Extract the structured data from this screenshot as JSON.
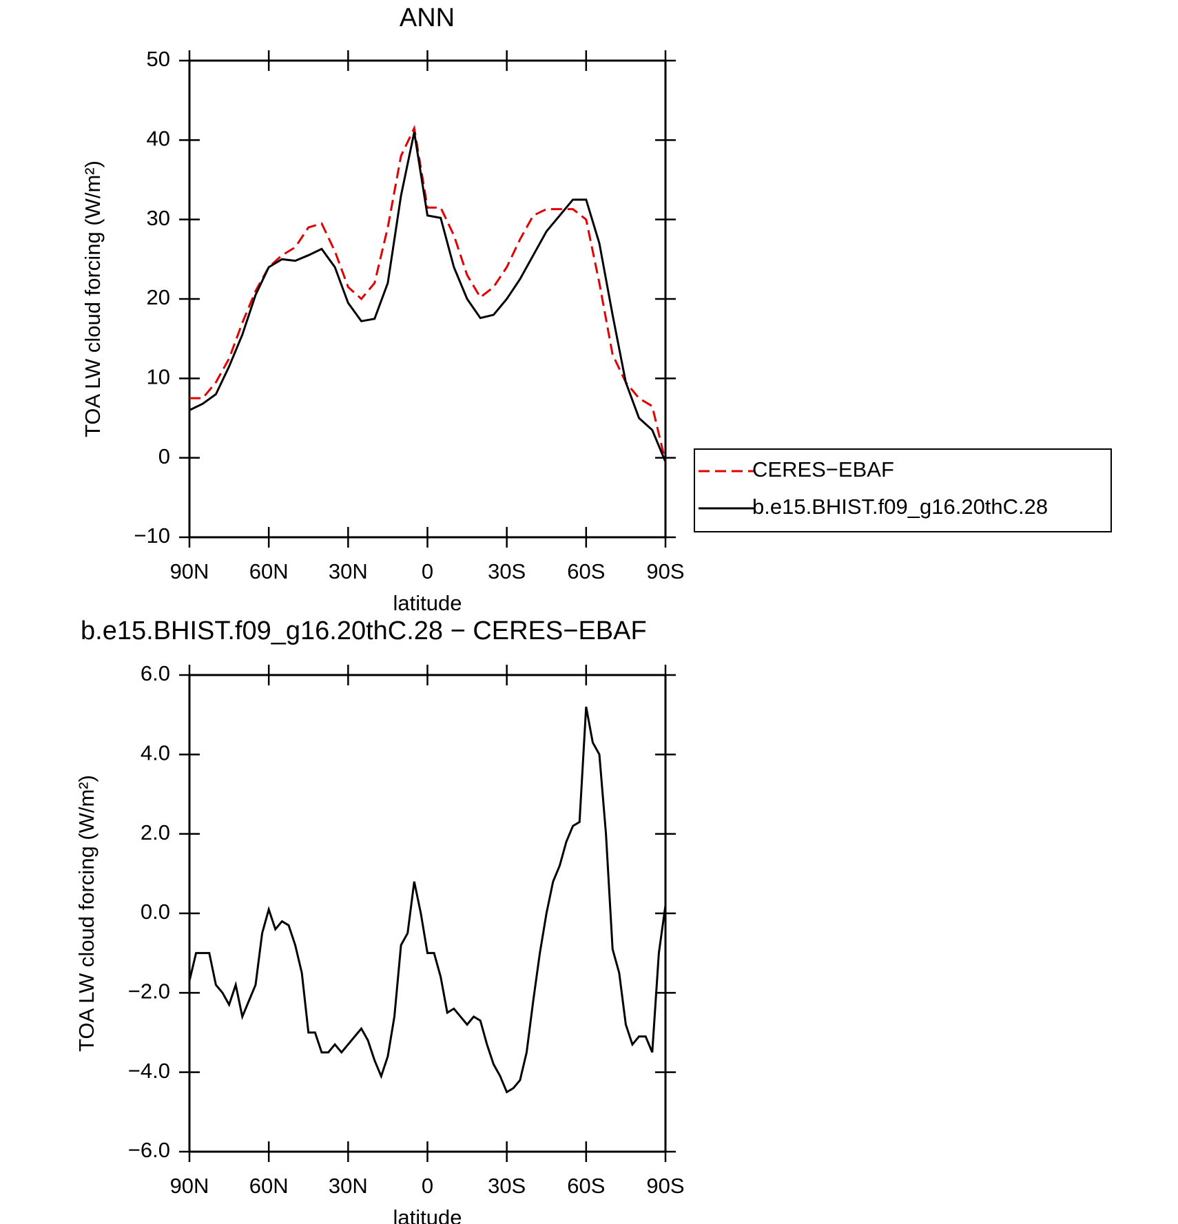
{
  "chart_data": [
    {
      "type": "line",
      "title": "ANN",
      "xlabel": "latitude",
      "ylabel": "TOA LW cloud forcing (W/m²)",
      "x": [
        90,
        85,
        80,
        75,
        70,
        65,
        60,
        55,
        50,
        45,
        40,
        35,
        30,
        25,
        20,
        15,
        10,
        5,
        0,
        -5,
        -10,
        -15,
        -20,
        -25,
        -30,
        -35,
        -40,
        -45,
        -50,
        -55,
        -60,
        -65,
        -70,
        -75,
        -80,
        -85,
        -90
      ],
      "series": [
        {
          "name": "CERES−EBAF",
          "color": "#e00000",
          "dash": true,
          "values": [
            7.5,
            7.5,
            9.5,
            12.5,
            17,
            21,
            24,
            25.5,
            26.5,
            29,
            29.5,
            26,
            21.5,
            20,
            22,
            29,
            38,
            41.5,
            31.5,
            31.5,
            28,
            23,
            20.2,
            21.5,
            24,
            27.5,
            30.5,
            31.3,
            31.3,
            31.3,
            30,
            22,
            13,
            9.5,
            7.5,
            6.5,
            -0.5
          ]
        },
        {
          "name": "b.e15.BHIST.f09_g16.20thC.28",
          "color": "#000000",
          "dash": false,
          "values": [
            6,
            6.8,
            8,
            11.5,
            15.5,
            20.5,
            24,
            25,
            24.8,
            25.5,
            26.3,
            24,
            19.5,
            17.2,
            17.5,
            22,
            33,
            41,
            30.5,
            30.2,
            24,
            20,
            17.6,
            18,
            20,
            22.5,
            25.5,
            28.5,
            30.5,
            32.5,
            32.5,
            27,
            18,
            9.5,
            5,
            3.5,
            -0.5
          ]
        }
      ],
      "xlim": [
        90,
        -90
      ],
      "xticks": [
        {
          "value": 90,
          "label": "90N"
        },
        {
          "value": 60,
          "label": "60N"
        },
        {
          "value": 30,
          "label": "30N"
        },
        0,
        {
          "value": -30,
          "label": "30S"
        },
        {
          "value": -60,
          "label": "60S"
        },
        {
          "value": -90,
          "label": "90S"
        }
      ],
      "ylim": [
        -10,
        50
      ],
      "yticks": [
        {
          "value": -10,
          "label": "−10"
        },
        0,
        10,
        20,
        30,
        40,
        50
      ],
      "legend": "right"
    },
    {
      "type": "line",
      "title": "b.e15.BHIST.f09_g16.20thC.28 − CERES−EBAF",
      "xlabel": "latitude",
      "ylabel": "TOA LW cloud forcing (W/m²)",
      "x": [
        90,
        87.5,
        85,
        82.5,
        80,
        77.5,
        75,
        72.5,
        70,
        67.5,
        65,
        62.5,
        60,
        57.5,
        55,
        52.5,
        50,
        47.5,
        45,
        42.5,
        40,
        37.5,
        35,
        32.5,
        30,
        27.5,
        25,
        22.5,
        20,
        17.5,
        15,
        12.5,
        10,
        7.5,
        5,
        2.5,
        0,
        -2.5,
        -5,
        -7.5,
        -10,
        -12.5,
        -15,
        -17.5,
        -20,
        -22.5,
        -25,
        -27.5,
        -30,
        -32.5,
        -35,
        -37.5,
        -40,
        -42.5,
        -45,
        -47.5,
        -50,
        -52.5,
        -55,
        -57.5,
        -60,
        -62.5,
        -65,
        -67.5,
        -70,
        -72.5,
        -75,
        -77.5,
        -80,
        -82.5,
        -85,
        -87.5,
        -90
      ],
      "series": [
        {
          "color": "#000000",
          "dash": false,
          "values": [
            -1.7,
            -1.0,
            -1.0,
            -1.0,
            -1.8,
            -2.0,
            -2.3,
            -1.8,
            -2.6,
            -2.2,
            -1.8,
            -0.5,
            0.1,
            -0.4,
            -0.2,
            -0.3,
            -0.8,
            -1.5,
            -3.0,
            -3.0,
            -3.5,
            -3.5,
            -3.3,
            -3.5,
            -3.3,
            -3.1,
            -2.9,
            -3.2,
            -3.7,
            -4.1,
            -3.6,
            -2.6,
            -0.8,
            -0.5,
            0.8,
            0.0,
            -1.0,
            -1.0,
            -1.6,
            -2.5,
            -2.4,
            -2.6,
            -2.8,
            -2.6,
            -2.7,
            -3.3,
            -3.8,
            -4.1,
            -4.5,
            -4.4,
            -4.2,
            -3.5,
            -2.2,
            -1.0,
            0.0,
            0.8,
            1.2,
            1.8,
            2.2,
            2.3,
            5.2,
            4.3,
            4.0,
            2.0,
            -0.9,
            -1.5,
            -2.8,
            -3.3,
            -3.1,
            -3.1,
            -3.5,
            -1.0,
            0.2
          ]
        }
      ],
      "xlim": [
        90,
        -90
      ],
      "xticks": [
        {
          "value": 90,
          "label": "90N"
        },
        {
          "value": 60,
          "label": "60N"
        },
        {
          "value": 30,
          "label": "30N"
        },
        0,
        {
          "value": -30,
          "label": "30S"
        },
        {
          "value": -60,
          "label": "60S"
        },
        {
          "value": -90,
          "label": "90S"
        }
      ],
      "ylim": [
        -6,
        6
      ],
      "yticks": [
        {
          "value": -6,
          "label": "−6.0"
        },
        {
          "value": -4,
          "label": "−4.0"
        },
        {
          "value": -2,
          "label": "−2.0"
        },
        {
          "value": 0,
          "label": "0.0"
        },
        {
          "value": 2,
          "label": "2.0"
        },
        {
          "value": 4,
          "label": "4.0"
        },
        {
          "value": 6,
          "label": "6.0"
        }
      ]
    }
  ]
}
